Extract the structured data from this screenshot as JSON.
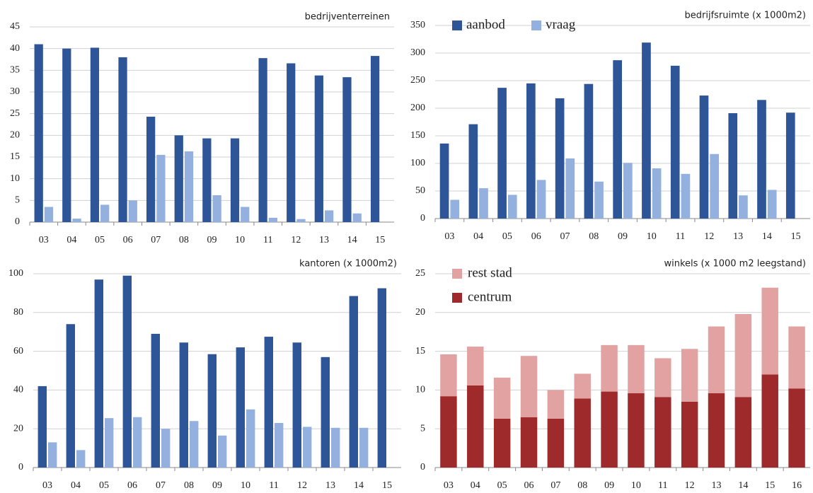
{
  "chart_data": [
    {
      "type": "bar",
      "title": "bedrijventerreinen",
      "categories": [
        "03",
        "04",
        "05",
        "06",
        "07",
        "08",
        "09",
        "10",
        "11",
        "12",
        "13",
        "14",
        "15"
      ],
      "series": [
        {
          "color": "#2d5597",
          "values": [
            41,
            40,
            40.2,
            38,
            24.3,
            20,
            19.3,
            19.3,
            37.8,
            36.6,
            33.8,
            33.4,
            38.3
          ]
        },
        {
          "color": "#93b0de",
          "values": [
            3.5,
            0.8,
            4,
            5,
            15.5,
            16.3,
            6.2,
            3.5,
            1,
            0.7,
            2.7,
            2,
            null
          ]
        }
      ],
      "ylim": [
        0,
        45
      ],
      "yticks": [
        0,
        5,
        10,
        15,
        20,
        25,
        30,
        35,
        40,
        45
      ],
      "grid": true
    },
    {
      "type": "bar",
      "title": "bedrijfsruimte (x 1000m2)",
      "categories": [
        "03",
        "04",
        "05",
        "06",
        "07",
        "08",
        "09",
        "10",
        "11",
        "12",
        "13",
        "14",
        "15"
      ],
      "series": [
        {
          "name": "aanbod",
          "color": "#2d5597",
          "values": [
            136,
            171,
            237,
            245,
            218,
            244,
            287,
            319,
            277,
            223,
            191,
            215,
            192
          ]
        },
        {
          "name": "vraag",
          "color": "#93b0de",
          "values": [
            34,
            55,
            43,
            70,
            109,
            67,
            101,
            91,
            81,
            117,
            42,
            52,
            null
          ]
        }
      ],
      "ylim": [
        0,
        350
      ],
      "yticks": [
        0,
        50,
        100,
        150,
        200,
        250,
        300,
        350
      ],
      "grid": true,
      "legend": "upper left"
    },
    {
      "type": "bar",
      "title": "kantoren (x 1000m2)",
      "categories": [
        "03",
        "04",
        "05",
        "06",
        "07",
        "08",
        "09",
        "10",
        "11",
        "12",
        "13",
        "14",
        "15"
      ],
      "series": [
        {
          "color": "#2d5597",
          "values": [
            42,
            74,
            97,
            99,
            69,
            64.5,
            58.5,
            62,
            67.5,
            64.5,
            57,
            88.5,
            92.5
          ]
        },
        {
          "color": "#93b0de",
          "values": [
            13,
            9,
            25.5,
            26,
            20,
            24,
            16.5,
            30,
            23,
            21,
            20.5,
            20.5,
            null
          ]
        }
      ],
      "ylim": [
        0,
        100
      ],
      "yticks": [
        0,
        20,
        40,
        60,
        80,
        100
      ],
      "grid": true
    },
    {
      "type": "stacked-bar",
      "title": "winkels (x 1000 m2 leegstand)",
      "categories": [
        "03",
        "04",
        "05",
        "06",
        "07",
        "08",
        "09",
        "10",
        "11",
        "12",
        "13",
        "14",
        "15",
        "16"
      ],
      "series": [
        {
          "name": "centrum",
          "color": "#9e2a2b",
          "values": [
            9.2,
            10.6,
            6.3,
            6.5,
            6.3,
            8.9,
            9.8,
            9.6,
            9.1,
            8.5,
            9.6,
            9.1,
            12,
            10.2
          ]
        },
        {
          "name": "rest stad",
          "color": "#e3a2a2",
          "values": [
            5.4,
            5.0,
            5.3,
            7.9,
            3.7,
            3.2,
            6.0,
            6.2,
            5.0,
            6.8,
            8.6,
            10.7,
            11.2,
            8.0
          ]
        }
      ],
      "ylim": [
        0,
        25
      ],
      "yticks": [
        0,
        5,
        10,
        15,
        20,
        25
      ],
      "grid": true,
      "legend": "upper left"
    }
  ]
}
